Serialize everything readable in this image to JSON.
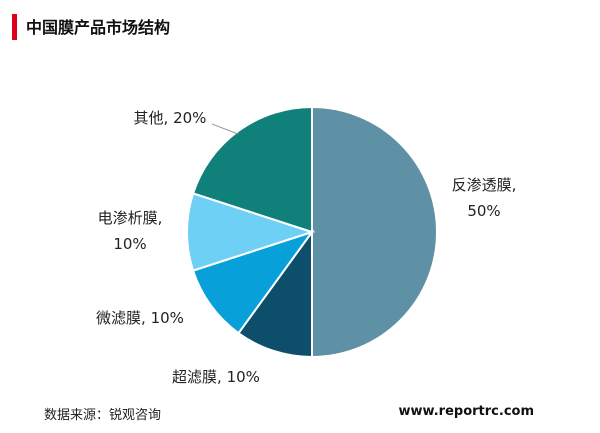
{
  "chart_data": {
    "type": "pie",
    "title": "中国膜产品市场结构",
    "values": [
      50,
      10,
      10,
      10,
      20
    ],
    "value_labels": [
      "反渗透膜, 50%",
      "超滤膜, 10%",
      "微滤膜, 10%",
      "电渗析膜, 10%",
      "其他, 20%"
    ],
    "colors": [
      "#5f91a6",
      "#0d4f6a",
      "#07a0d8",
      "#6fd0f6",
      "#10807a"
    ],
    "source": "数据来源：锐观咨询",
    "website": "www.reportrc.com"
  }
}
